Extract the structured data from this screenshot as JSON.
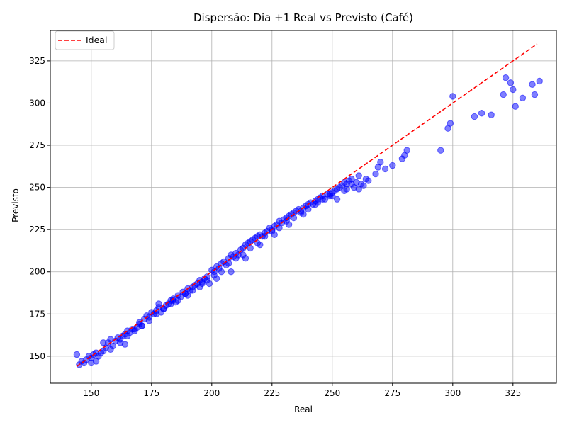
{
  "chart_data": {
    "type": "scatter",
    "title": "Dispersão: Dia +1 Real vs Previsto (Café)",
    "xlabel": "Real",
    "ylabel": "Previsto",
    "xlim": [
      133,
      343
    ],
    "ylim": [
      134,
      343
    ],
    "xticks": [
      150,
      175,
      200,
      225,
      250,
      275,
      300,
      325
    ],
    "yticks": [
      150,
      175,
      200,
      225,
      250,
      275,
      300,
      325
    ],
    "grid": true,
    "legend": {
      "position": "top-left",
      "entries": [
        "Ideal"
      ]
    },
    "series": [
      {
        "name": "Ideal",
        "kind": "line",
        "style": "dashed",
        "color": "#ff0000",
        "x": [
          144,
          335
        ],
        "y": [
          144,
          335
        ]
      },
      {
        "kind": "points",
        "color": "#0000ff",
        "x": [
          144,
          145,
          146,
          147,
          148,
          149,
          150,
          151,
          152,
          153,
          154,
          155,
          156,
          157,
          158,
          159,
          160,
          161,
          162,
          163,
          164,
          165,
          166,
          167,
          168,
          169,
          170,
          171,
          172,
          173,
          174,
          175,
          176,
          177,
          178,
          179,
          180,
          181,
          182,
          183,
          184,
          185,
          186,
          187,
          188,
          189,
          190,
          191,
          192,
          193,
          194,
          195,
          196,
          197,
          198,
          199,
          200,
          201,
          202,
          203,
          204,
          205,
          206,
          207,
          208,
          209,
          210,
          211,
          212,
          213,
          214,
          215,
          216,
          217,
          218,
          219,
          220,
          221,
          222,
          223,
          224,
          225,
          226,
          227,
          228,
          229,
          230,
          231,
          232,
          233,
          234,
          235,
          236,
          237,
          238,
          239,
          240,
          241,
          242,
          243,
          244,
          245,
          246,
          247,
          248,
          249,
          250,
          251,
          252,
          253,
          254,
          255,
          256,
          257,
          258,
          259,
          260,
          261,
          262,
          263,
          264,
          265,
          268,
          269,
          270,
          272,
          275,
          279,
          280,
          281,
          295,
          298,
          299,
          300,
          309,
          312,
          316,
          321,
          322,
          324,
          325,
          326,
          329,
          333,
          334,
          336,
          150,
          152,
          155,
          158,
          162,
          165,
          168,
          171,
          174,
          177,
          180,
          183,
          186,
          189,
          192,
          195,
          198,
          201,
          204,
          207,
          210,
          213,
          216,
          219,
          222,
          225,
          228,
          231,
          234,
          237,
          240,
          243,
          246,
          249,
          252,
          255,
          258,
          261,
          164,
          170,
          178,
          184,
          190,
          196,
          202,
          208,
          214,
          220,
          226,
          232,
          238,
          244,
          250,
          256
        ],
        "y": [
          151,
          145,
          147,
          146,
          148,
          150,
          149,
          151,
          147,
          150,
          152,
          153,
          155,
          158,
          160,
          156,
          159,
          161,
          158,
          162,
          163,
          165,
          164,
          166,
          165,
          167,
          170,
          168,
          172,
          174,
          173,
          176,
          175,
          177,
          179,
          176,
          178,
          180,
          181,
          183,
          184,
          182,
          186,
          185,
          188,
          187,
          190,
          189,
          191,
          192,
          193,
          195,
          194,
          196,
          197,
          193,
          201,
          200,
          203,
          202,
          205,
          206,
          204,
          208,
          210,
          209,
          211,
          210,
          213,
          214,
          216,
          217,
          218,
          219,
          220,
          221,
          222,
          221,
          223,
          224,
          226,
          225,
          227,
          228,
          230,
          229,
          231,
          232,
          233,
          234,
          235,
          236,
          237,
          236,
          238,
          239,
          240,
          241,
          240,
          242,
          243,
          244,
          245,
          243,
          246,
          245,
          247,
          248,
          249,
          250,
          251,
          253,
          252,
          254,
          255,
          250,
          253,
          257,
          252,
          251,
          255,
          254,
          258,
          262,
          265,
          261,
          263,
          267,
          269,
          272,
          272,
          285,
          288,
          304,
          292,
          294,
          293,
          305,
          315,
          312,
          308,
          298,
          303,
          311,
          305,
          313,
          146,
          152,
          158,
          154,
          160,
          162,
          166,
          168,
          171,
          175,
          178,
          181,
          183,
          187,
          189,
          191,
          195,
          198,
          200,
          205,
          208,
          210,
          214,
          217,
          221,
          224,
          226,
          230,
          232,
          235,
          237,
          240,
          243,
          246,
          243,
          248,
          252,
          249,
          157,
          169,
          181,
          183,
          186,
          193,
          196,
          200,
          208,
          216,
          222,
          228,
          234,
          241,
          245,
          249
        ]
      }
    ]
  }
}
